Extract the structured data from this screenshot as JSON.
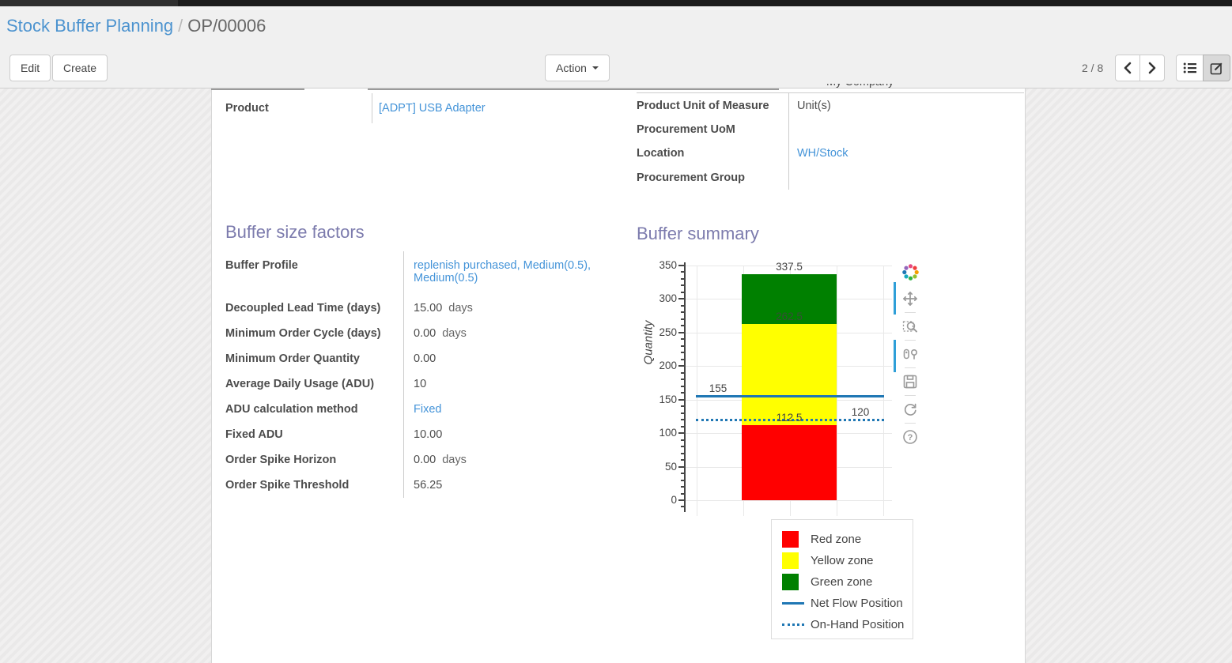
{
  "breadcrumb": {
    "parent": "Stock Buffer Planning",
    "separator": "/",
    "current": "OP/00006"
  },
  "control_panel": {
    "edit_label": "Edit",
    "create_label": "Create",
    "action_label": "Action",
    "pager": "2 / 8",
    "view_switcher": [
      "list-view",
      "form-view"
    ],
    "active_view": "form-view"
  },
  "form": {
    "clipped_company": "My Company",
    "left_fields": [
      {
        "label": "Product",
        "value": "[ADPT] USB Adapter",
        "link": true
      }
    ],
    "right_fields": [
      {
        "label": "Product Unit of Measure",
        "value": "Unit(s)"
      },
      {
        "label": "Procurement UoM",
        "value": ""
      },
      {
        "label": "Location",
        "value": "WH/Stock",
        "link": true
      },
      {
        "label": "Procurement Group",
        "value": ""
      }
    ]
  },
  "sections": {
    "factors": {
      "title": "Buffer size factors",
      "fields": [
        {
          "label": "Buffer Profile",
          "value": "replenish purchased, Medium(0.5), Medium(0.5)",
          "link": true
        },
        {
          "label": "Decoupled Lead Time (days)",
          "value": "15.00",
          "suffix": "days"
        },
        {
          "label": "Minimum Order Cycle (days)",
          "value": "0.00",
          "suffix": "days"
        },
        {
          "label": "Minimum Order Quantity",
          "value": "0.00"
        },
        {
          "label": "Average Daily Usage (ADU)",
          "value": "10"
        },
        {
          "label": "ADU calculation method",
          "value": "Fixed",
          "link": true
        },
        {
          "label": "Fixed ADU",
          "value": "10.00"
        },
        {
          "label": "Order Spike Horizon",
          "value": "0.00",
          "suffix": "days"
        },
        {
          "label": "Order Spike Threshold",
          "value": "56.25"
        }
      ]
    },
    "summary": {
      "title": "Buffer summary"
    }
  },
  "chart_data": {
    "type": "bar",
    "title": "",
    "ylabel": "Quantity",
    "ylim": [
      0,
      350
    ],
    "ytick_step": 50,
    "yminor_step": 10,
    "grid": true,
    "zones": [
      {
        "name": "Red zone",
        "from": 0,
        "to": 112.5,
        "color": "#ff0000"
      },
      {
        "name": "Yellow zone",
        "from": 112.5,
        "to": 262.5,
        "color": "#ffff00"
      },
      {
        "name": "Green zone",
        "from": 262.5,
        "to": 337.5,
        "color": "#008000"
      }
    ],
    "lines": [
      {
        "name": "Net Flow Position",
        "value": 155,
        "style": "solid",
        "color": "#1f77b4"
      },
      {
        "name": "On-Hand Position",
        "value": 120,
        "style": "dotted",
        "color": "#1f77b4"
      }
    ],
    "annotations": [
      {
        "text": "337.5",
        "y": 337.5,
        "anchor": "bar-center"
      },
      {
        "text": "262.5",
        "y": 262.5,
        "anchor": "bar-center",
        "muted": true
      },
      {
        "text": "112.5",
        "y": 112.5,
        "anchor": "bar-center"
      },
      {
        "text": "155",
        "y": 155,
        "anchor": "left"
      },
      {
        "text": "120",
        "y": 120,
        "anchor": "right"
      }
    ],
    "legend_position": "below-right",
    "legend_items": [
      {
        "label": "Red zone",
        "swatch": "square",
        "color": "#ff0000"
      },
      {
        "label": "Yellow zone",
        "swatch": "square",
        "color": "#ffff00"
      },
      {
        "label": "Green zone",
        "swatch": "square",
        "color": "#008000"
      },
      {
        "label": "Net Flow Position",
        "swatch": "line",
        "color": "#1f77b4"
      },
      {
        "label": "On-Hand Position",
        "swatch": "dots",
        "color": "#1f77b4"
      }
    ]
  },
  "modebar_icons": [
    "plotly-logo",
    "pan",
    "box-zoom",
    "compare-hover",
    "download-plot",
    "reset-axes",
    "help"
  ],
  "colors": {
    "link_blue": "#4393d8",
    "section_title_purple": "#7c7bad",
    "net_flow_blue": "#1f77b4",
    "red_zone": "#ff0000",
    "yellow_zone": "#ffff00",
    "green_zone": "#008000"
  }
}
